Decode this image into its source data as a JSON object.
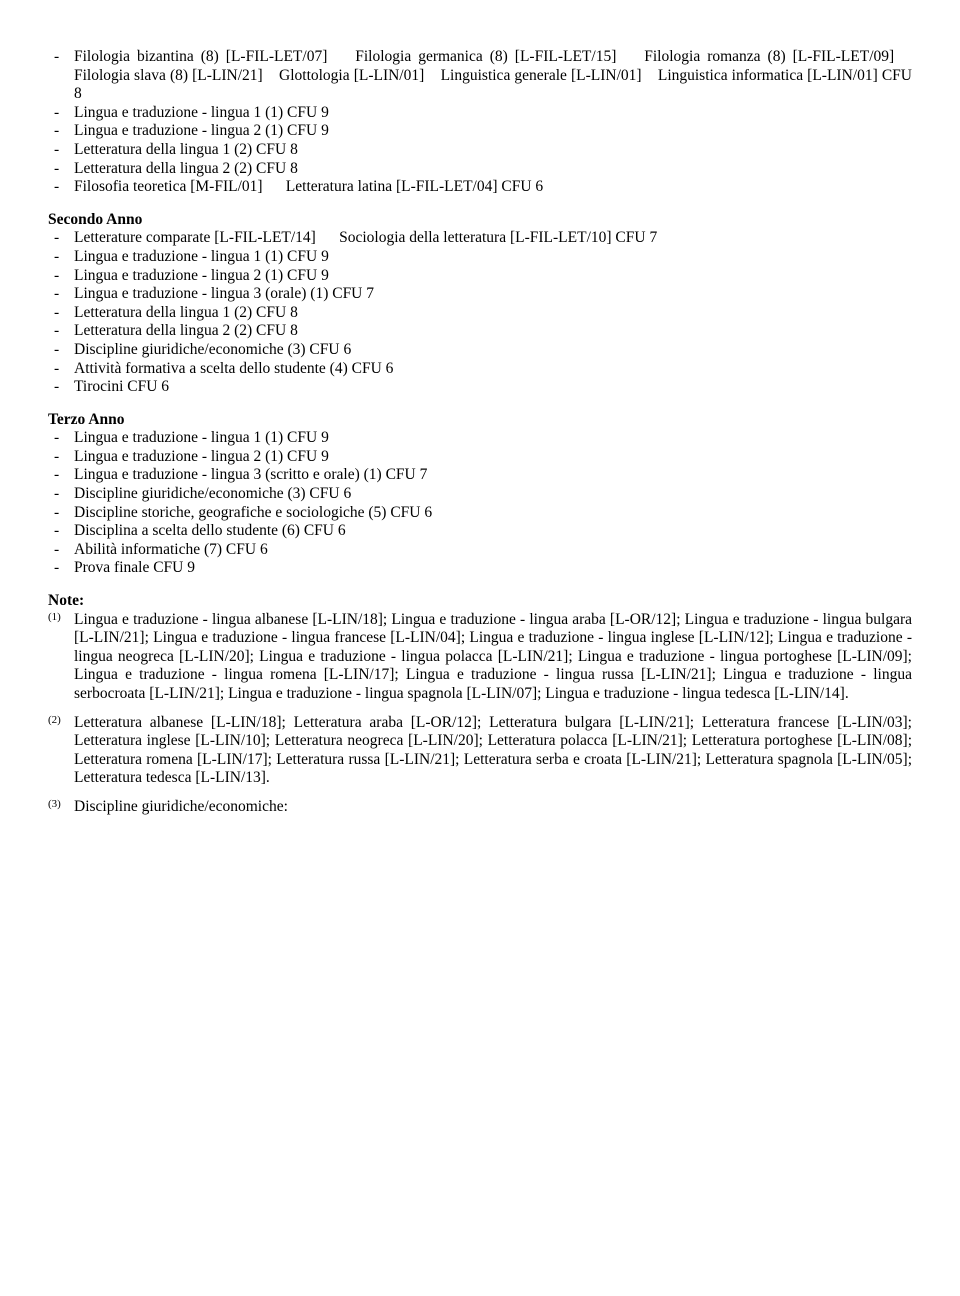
{
  "primoAnno": {
    "items": [
      "Filologia bizantina (8) [L-FIL-LET/07]    Filologia germanica (8) [L-FIL-LET/15]    Filologia romanza (8) [L-FIL-LET/09]    Filologia slava (8) [L-LIN/21]    Glottologia [L-LIN/01]    Linguistica generale [L-LIN/01]    Linguistica informatica [L-LIN/01] CFU 8",
      "Lingua e traduzione - lingua 1 (1) CFU 9",
      "Lingua e traduzione - lingua 2 (1) CFU 9",
      "Letteratura della lingua 1 (2) CFU 8",
      "Letteratura della lingua 2 (2) CFU 8",
      "Filosofia teoretica [M-FIL/01]      Letteratura latina [L-FIL-LET/04] CFU 6"
    ]
  },
  "secondoAnno": {
    "heading": "Secondo Anno",
    "items": [
      "Letterature comparate [L-FIL-LET/14]      Sociologia della letteratura [L-FIL-LET/10] CFU 7",
      "Lingua e traduzione - lingua 1 (1) CFU 9",
      "Lingua e traduzione - lingua 2 (1) CFU 9",
      "Lingua e traduzione - lingua 3 (orale) (1) CFU 7",
      "Letteratura della lingua 1 (2) CFU 8",
      "Letteratura della lingua 2 (2) CFU 8",
      "Discipline giuridiche/economiche (3) CFU 6",
      "Attività formativa a scelta dello studente (4) CFU 6",
      "Tirocini CFU 6"
    ]
  },
  "terzoAnno": {
    "heading": "Terzo Anno",
    "items": [
      "Lingua e traduzione - lingua 1 (1) CFU 9",
      "Lingua e traduzione - lingua 2 (1) CFU 9",
      "Lingua e traduzione - lingua 3 (scritto e orale) (1) CFU 7",
      "Discipline giuridiche/economiche (3) CFU 6",
      "Discipline storiche, geografiche e sociologiche (5) CFU 6",
      "Disciplina a scelta dello studente (6) CFU 6",
      "Abilità informatiche (7) CFU 6",
      "Prova finale CFU 9"
    ]
  },
  "notes": {
    "heading": "Note:",
    "items": [
      {
        "sup": "(1)",
        "text": "Lingua e traduzione - lingua albanese [L-LIN/18]; Lingua e traduzione - lingua araba [L-OR/12]; Lingua e traduzione - lingua bulgara [L-LIN/21]; Lingua e traduzione - lingua francese [L-LIN/04]; Lingua e traduzione - lingua inglese [L-LIN/12]; Lingua e traduzione - lingua neogreca [L-LIN/20]; Lingua e traduzione - lingua polacca [L-LIN/21]; Lingua e traduzione - lingua portoghese [L-LIN/09]; Lingua e traduzione - lingua romena [L-LIN/17]; Lingua e traduzione - lingua russa [L-LIN/21]; Lingua e traduzione - lingua serbocroata [L-LIN/21]; Lingua e traduzione - lingua spagnola [L-LIN/07]; Lingua e traduzione - lingua tedesca [L-LIN/14]."
      },
      {
        "sup": "(2)",
        "text": "Letteratura albanese [L-LIN/18]; Letteratura araba [L-OR/12]; Letteratura bulgara [L-LIN/21]; Letteratura francese [L-LIN/03]; Letteratura inglese [L-LIN/10]; Letteratura neogreca [L-LIN/20]; Letteratura polacca [L-LIN/21]; Letteratura portoghese [L-LIN/08]; Letteratura romena [L-LIN/17]; Letteratura russa [L-LIN/21]; Letteratura serba e croata [L-LIN/21]; Letteratura spagnola [L-LIN/05]; Letteratura tedesca [L-LIN/13]."
      },
      {
        "sup": "(3)",
        "text": "Discipline giuridiche/economiche:"
      }
    ]
  }
}
